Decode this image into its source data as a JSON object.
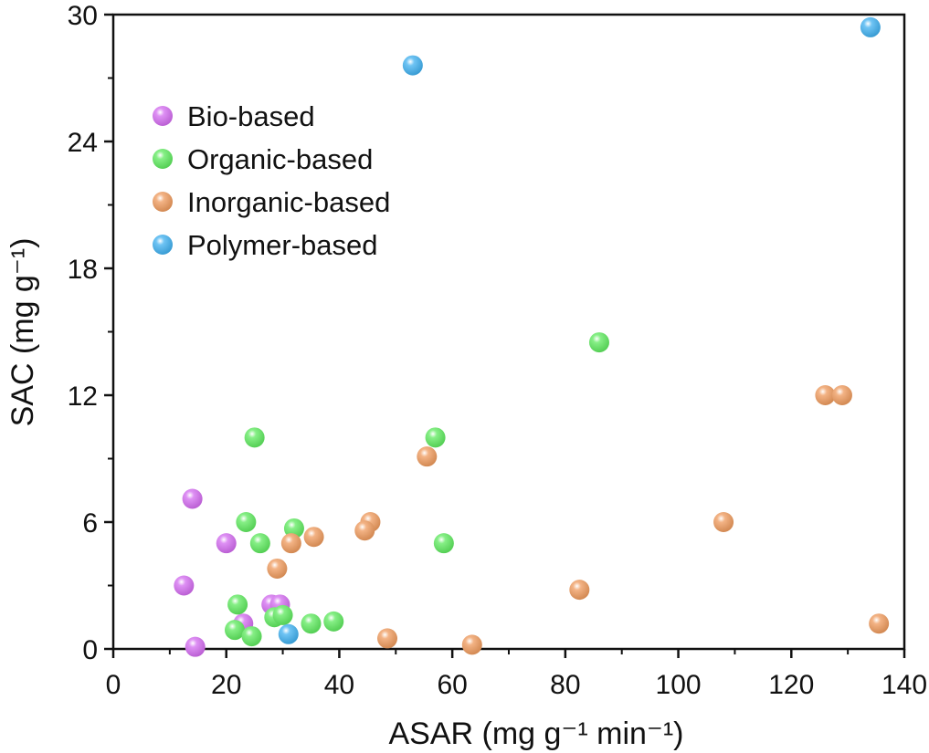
{
  "chart_data": {
    "type": "scatter",
    "xlabel": "ASAR (mg g⁻¹ min⁻¹)",
    "ylabel": "SAC (mg g⁻¹)",
    "xlim": [
      0,
      140
    ],
    "ylim": [
      0,
      30
    ],
    "x_ticks": [
      0,
      20,
      40,
      60,
      80,
      100,
      120,
      140
    ],
    "y_ticks": [
      0,
      6,
      12,
      18,
      24,
      30
    ],
    "x_tick_labels": [
      "0",
      "20",
      "40",
      "60",
      "80",
      "100",
      "120",
      "140"
    ],
    "y_tick_labels": [
      "0",
      "6",
      "12",
      "18",
      "24",
      "30"
    ],
    "grid": false,
    "legend_position": "upper-left",
    "series": [
      {
        "name": "Bio-based",
        "color": "#d36bf0",
        "points": [
          [
            14,
            7.1
          ],
          [
            20,
            5.0
          ],
          [
            12.5,
            3.0
          ],
          [
            28,
            2.1
          ],
          [
            29.5,
            2.1
          ],
          [
            23,
            1.2
          ],
          [
            14.5,
            0.1
          ]
        ]
      },
      {
        "name": "Organic-based",
        "color": "#5eea5e",
        "points": [
          [
            86,
            14.5
          ],
          [
            25,
            10.0
          ],
          [
            57,
            10.0
          ],
          [
            23.5,
            6.0
          ],
          [
            32,
            5.7
          ],
          [
            26,
            5.0
          ],
          [
            58.5,
            5.0
          ],
          [
            22,
            2.1
          ],
          [
            28.5,
            1.5
          ],
          [
            30,
            1.6
          ],
          [
            21.5,
            0.9
          ],
          [
            24.5,
            0.6
          ],
          [
            35,
            1.2
          ],
          [
            39,
            1.3
          ]
        ]
      },
      {
        "name": "Inorganic-based",
        "color": "#ef9a5c",
        "points": [
          [
            126,
            12.0
          ],
          [
            129,
            12.0
          ],
          [
            55.5,
            9.1
          ],
          [
            108,
            6.0
          ],
          [
            45.5,
            6.0
          ],
          [
            44.5,
            5.6
          ],
          [
            35.5,
            5.3
          ],
          [
            31.5,
            5.0
          ],
          [
            29,
            3.8
          ],
          [
            82.5,
            2.8
          ],
          [
            135.5,
            1.2
          ],
          [
            48.5,
            0.5
          ],
          [
            63.5,
            0.2
          ]
        ]
      },
      {
        "name": "Polymer-based",
        "color": "#3fb0f0",
        "points": [
          [
            134,
            29.4
          ],
          [
            53,
            27.6
          ],
          [
            31,
            0.7
          ]
        ]
      }
    ]
  }
}
